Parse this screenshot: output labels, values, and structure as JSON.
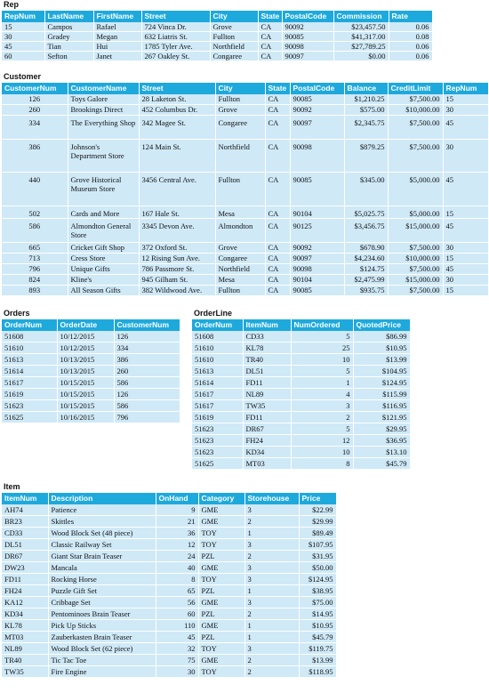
{
  "rep": {
    "title": "Rep",
    "columns": [
      "RepNum",
      "LastName",
      "FirstName",
      "Street",
      "City",
      "State",
      "PostalCode",
      "Commission",
      "Rate"
    ],
    "rows": [
      [
        "15",
        "Campos",
        "Rafael",
        "724 Vinca Dr.",
        "Grove",
        "CA",
        "90092",
        "$23,457.50",
        "0.06"
      ],
      [
        "30",
        "Gradey",
        "Megan",
        "632 Liatris St.",
        "Fullton",
        "CA",
        "90085",
        "$41,317.00",
        "0.08"
      ],
      [
        "45",
        "Tian",
        "Hui",
        "1785 Tyler Ave.",
        "Northfield",
        "CA",
        "90098",
        "$27,789.25",
        "0.06"
      ],
      [
        "60",
        "Sefton",
        "Janet",
        "267 Oakley St.",
        "Congaree",
        "CA",
        "90097",
        "$0.00",
        "0.06"
      ]
    ]
  },
  "customer": {
    "title": "Customer",
    "columns": [
      "CustomerNum",
      "CustomerName",
      "Street",
      "City",
      "State",
      "PostalCode",
      "Balance",
      "CreditLimit",
      "RepNum"
    ],
    "rows": [
      [
        "126",
        "Toys Galore",
        "28 Laketon St.",
        "Fullton",
        "CA",
        "90085",
        "$1,210.25",
        "$7,500.00",
        "15"
      ],
      [
        "260",
        "Brookings Direct",
        "452 Columbus Dr.",
        "Grove",
        "CA",
        "90092",
        "$575.00",
        "$10,000.00",
        "30"
      ],
      [
        "334",
        "The Everything Shop",
        "342 Magee St.",
        "Congaree",
        "CA",
        "90097",
        "$2,345.75",
        "$7,500.00",
        "45"
      ],
      [
        "386",
        "Johnson's Department Store",
        "124 Main St.",
        "Northfield",
        "CA",
        "90098",
        "$879.25",
        "$7,500.00",
        "30"
      ],
      [
        "440",
        "Grove Historical Museum Store",
        "3456 Central Ave.",
        "Fullton",
        "CA",
        "90085",
        "$345.00",
        "$5,000.00",
        "45"
      ],
      [
        "502",
        "Cards and More",
        "167 Hale St.",
        "Mesa",
        "CA",
        "90104",
        "$5,025.75",
        "$5,000.00",
        "15"
      ],
      [
        "586",
        "Almondton General Store",
        "3345 Devon Ave.",
        "Almondton",
        "CA",
        "90125",
        "$3,456.75",
        "$15,000.00",
        "45"
      ],
      [
        "665",
        "Cricket Gift Shop",
        "372 Oxford St.",
        "Grove",
        "CA",
        "90092",
        "$678.90",
        "$7,500.00",
        "30"
      ],
      [
        "713",
        "Cress Store",
        "12 Rising Sun Ave.",
        "Congaree",
        "CA",
        "90097",
        "$4,234.60",
        "$10,000.00",
        "15"
      ],
      [
        "796",
        "Unique Gifts",
        "786 Passmore St.",
        "Northfield",
        "CA",
        "90098",
        "$124.75",
        "$7,500.00",
        "45"
      ],
      [
        "824",
        "Kline's",
        "945 Gilham St.",
        "Mesa",
        "CA",
        "90104",
        "$2,475.99",
        "$15,000.00",
        "30"
      ],
      [
        "893",
        "All Season Gifts",
        "382 Wildwood Ave.",
        "Fullton",
        "CA",
        "90085",
        "$935.75",
        "$7,500.00",
        "15"
      ]
    ]
  },
  "orders": {
    "title": "Orders",
    "columns": [
      "OrderNum",
      "OrderDate",
      "CustomerNum"
    ],
    "rows": [
      [
        "51608",
        "10/12/2015",
        "126"
      ],
      [
        "51610",
        "10/12/2015",
        "334"
      ],
      [
        "51613",
        "10/13/2015",
        "386"
      ],
      [
        "51614",
        "10/13/2015",
        "260"
      ],
      [
        "51617",
        "10/15/2015",
        "586"
      ],
      [
        "51619",
        "10/15/2015",
        "126"
      ],
      [
        "51623",
        "10/15/2015",
        "586"
      ],
      [
        "51625",
        "10/16/2015",
        "796"
      ]
    ]
  },
  "orderline": {
    "title": "OrderLine",
    "columns": [
      "OrderNum",
      "ItemNum",
      "NumOrdered",
      "QuotedPrice"
    ],
    "rows": [
      [
        "51608",
        "CD33",
        "5",
        "$86.99"
      ],
      [
        "51610",
        "KL78",
        "25",
        "$10.95"
      ],
      [
        "51610",
        "TR40",
        "10",
        "$13.99"
      ],
      [
        "51613",
        "DL51",
        "5",
        "$104.95"
      ],
      [
        "51614",
        "FD11",
        "1",
        "$124.95"
      ],
      [
        "51617",
        "NL89",
        "4",
        "$115.99"
      ],
      [
        "51617",
        "TW35",
        "3",
        "$116.95"
      ],
      [
        "51619",
        "FD11",
        "2",
        "$121.95"
      ],
      [
        "51623",
        "DR67",
        "5",
        "$29.95"
      ],
      [
        "51623",
        "FH24",
        "12",
        "$36.95"
      ],
      [
        "51623",
        "KD34",
        "10",
        "$13.10"
      ],
      [
        "51625",
        "MT03",
        "8",
        "$45.79"
      ]
    ]
  },
  "item": {
    "title": "Item",
    "columns": [
      "ItemNum",
      "Description",
      "OnHand",
      "Category",
      "Storehouse",
      "Price"
    ],
    "rows": [
      [
        "AH74",
        "Patience",
        "9",
        "GME",
        "3",
        "$22.99"
      ],
      [
        "BR23",
        "Skittles",
        "21",
        "GME",
        "2",
        "$29.99"
      ],
      [
        "CD33",
        "Wood Block Set (48 piece)",
        "36",
        "TOY",
        "1",
        "$89.49"
      ],
      [
        "DL51",
        "Classic Railway Set",
        "12",
        "TOY",
        "3",
        "$107.95"
      ],
      [
        "DR67",
        "Giant Star Brain Teaser",
        "24",
        "PZL",
        "2",
        "$31.95"
      ],
      [
        "DW23",
        "Mancala",
        "40",
        "GME",
        "3",
        "$50.00"
      ],
      [
        "FD11",
        "Rocking Horse",
        "8",
        "TOY",
        "3",
        "$124.95"
      ],
      [
        "FH24",
        "Puzzle Gift Set",
        "65",
        "PZL",
        "1",
        "$38.95"
      ],
      [
        "KA12",
        "Cribbage Set",
        "56",
        "GME",
        "3",
        "$75.00"
      ],
      [
        "KD34",
        "Pentominoes Brain Teaser",
        "60",
        "PZL",
        "2",
        "$14.95"
      ],
      [
        "KL78",
        "Pick Up Sticks",
        "110",
        "GME",
        "1",
        "$10.95"
      ],
      [
        "MT03",
        "Zauberkasten Brain Teaser",
        "45",
        "PZL",
        "1",
        "$45.79"
      ],
      [
        "NL89",
        "Wood Block Set (62 piece)",
        "32",
        "TOY",
        "3",
        "$119.75"
      ],
      [
        "TR40",
        "Tic Tac Toe",
        "75",
        "GME",
        "2",
        "$13.99"
      ],
      [
        "TW35",
        "Fire Engine",
        "30",
        "TOY",
        "2",
        "$118.95"
      ]
    ]
  }
}
